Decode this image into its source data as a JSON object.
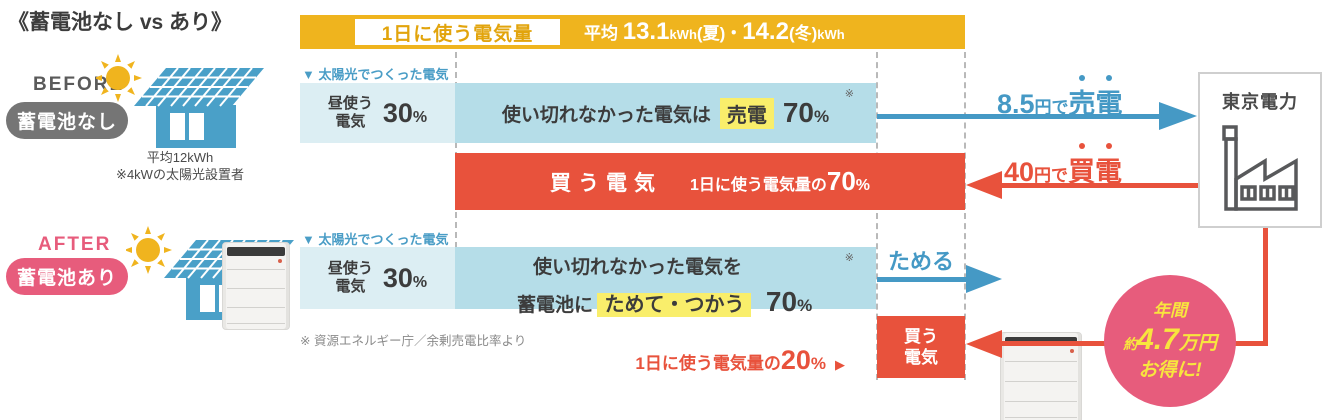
{
  "title": "《蓄電池なし vs あり》",
  "banner": {
    "label": "1日に使う電気量",
    "avg": "平均",
    "summer_value": "13.1",
    "summer_unit": "kWh",
    "summer_season": "(夏)・",
    "winter_value": "14.2",
    "winter_season": "(冬)",
    "winter_unit": "kWh"
  },
  "before": {
    "tag": "BEFORE",
    "pill": "蓄電池なし",
    "caption1": "平均12kWh",
    "caption2": "※4kWの太陽光設置者"
  },
  "after": {
    "tag": "AFTER",
    "pill": "蓄電池あり"
  },
  "row_before": {
    "solar_label": "▼ 太陽光でつくった電気",
    "day1": "昼使う",
    "day2": "電気",
    "day_value": "30",
    "day_unit": "%",
    "surplus_prefix": "使い切れなかった電気は",
    "surplus_highlight": "売電",
    "surplus_value": "70",
    "surplus_unit": "%",
    "note_mark": "※",
    "buy_label": "買う電気",
    "buy_prefix": "1日に使う電気量の",
    "buy_value": "70",
    "buy_unit": "%",
    "sell_arrow_value": "8.5",
    "sell_arrow_mid": "円で",
    "sell_arrow_emph": "売電",
    "buy_arrow_value": "40",
    "buy_arrow_mid": "円で",
    "buy_arrow_emph": "買電"
  },
  "row_after": {
    "solar_label": "▼ 太陽光でつくった電気",
    "day1": "昼使う",
    "day2": "電気",
    "day_value": "30",
    "day_unit": "%",
    "surplus_line1": "使い切れなかった電気を",
    "surplus_prefix": "蓄電池に",
    "surplus_highlight": "ためて・つかう",
    "surplus_value": "70",
    "surplus_unit": "%",
    "note_mark": "※",
    "store_label": "ためる",
    "buy_box1": "買う",
    "buy_box2": "電気",
    "buy_prefix": "1日に使う電気量の",
    "buy_value": "20",
    "buy_unit": "%",
    "buy_pointer": "▶"
  },
  "utility": {
    "name": "東京電力"
  },
  "source_note": "※ 資源エネルギー庁／余剰売電比率より",
  "savings": {
    "line1": "年間",
    "approx": "約",
    "value": "4.7",
    "unit": "万円",
    "line3": "お得に!"
  },
  "colors": {
    "yellow": "#efb41e",
    "blue": "#4599c5",
    "red": "#e8523c",
    "pink": "#e75c7c",
    "light_blue_1": "#dceef3",
    "light_blue_2": "#b5dde8",
    "highlight": "#f9ee6b",
    "gray_pill": "#757575",
    "circle_text": "#f8e53e"
  }
}
